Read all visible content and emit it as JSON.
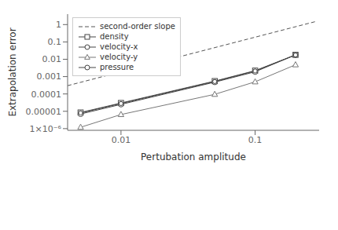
{
  "chart_data": {
    "type": "line",
    "log": true,
    "xlabel": "Pertubation amplitude",
    "ylabel": "Extrapolation error",
    "xlim": [
      0.004,
      0.3
    ],
    "ylim": [
      8e-07,
      4
    ],
    "xticks": [
      0.01,
      0.1
    ],
    "yticks": [
      {
        "value": 1e-06,
        "label": "1×10⁻⁶"
      },
      1e-05,
      0.0001,
      0.001,
      0.01,
      0.1,
      1
    ],
    "legend": "upper left",
    "x": [
      0.005,
      0.01,
      0.05,
      0.1,
      0.2
    ],
    "series": [
      {
        "name": "second-order slope",
        "color": "#555555",
        "line_style": "dashed",
        "x": [
          0.004,
          0.28
        ],
        "values": [
          0.0003,
          1.47
        ]
      },
      {
        "name": "density",
        "color": "#444444",
        "marker": "square",
        "line_style": "solid",
        "values": [
          8.5e-06,
          3e-05,
          0.00055,
          0.0022,
          0.018
        ]
      },
      {
        "name": "velocity-x",
        "color": "#444444",
        "marker": "circle",
        "line_style": "solid",
        "values": [
          7e-06,
          2.5e-05,
          0.00048,
          0.0019,
          0.018
        ]
      },
      {
        "name": "velocity-y",
        "color": "#777777",
        "marker": "triangle",
        "line_style": "solid",
        "values": [
          1.2e-06,
          6.5e-06,
          9.5e-05,
          0.0005,
          0.0048
        ]
      },
      {
        "name": "pressure",
        "color": "#444444",
        "marker": "circle",
        "line_style": "solid",
        "values": [
          8e-06,
          2.8e-05,
          0.00052,
          0.0021,
          0.0175
        ]
      }
    ]
  }
}
